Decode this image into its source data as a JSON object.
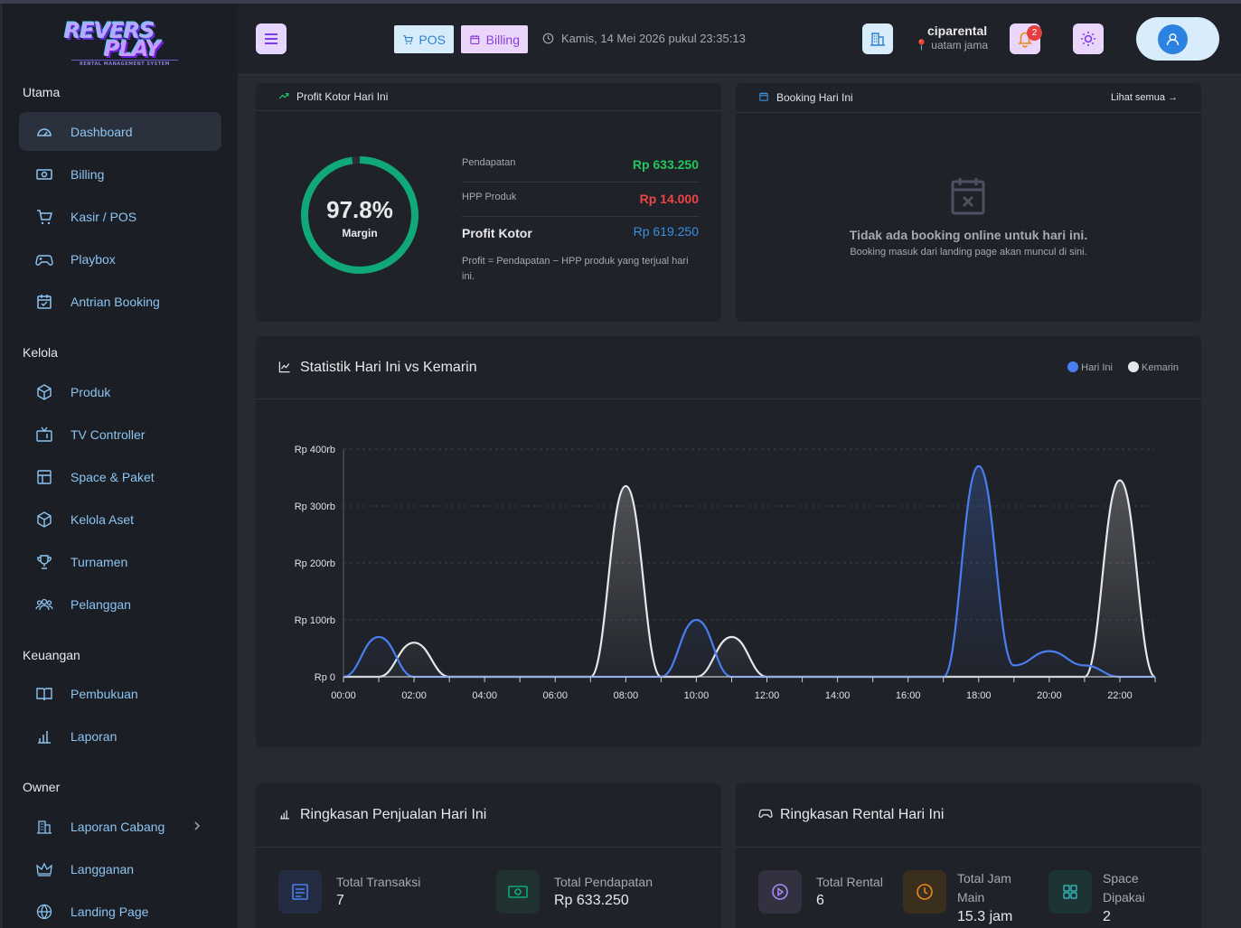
{
  "brand": {
    "line1": "REVERS",
    "line2": "PLAY",
    "tagline": "RENTAL MANAGEMENT SYSTEM"
  },
  "sidebar": {
    "sections": [
      {
        "title": "Utama",
        "items": [
          {
            "label": "Dashboard",
            "icon": "gauge-icon",
            "active": true
          },
          {
            "label": "Billing",
            "icon": "money-icon"
          },
          {
            "label": "Kasir / POS",
            "icon": "cart-icon"
          },
          {
            "label": "Playbox",
            "icon": "gamepad-icon"
          },
          {
            "label": "Antrian Booking",
            "icon": "calendar-check-icon"
          }
        ]
      },
      {
        "title": "Kelola",
        "items": [
          {
            "label": "Produk",
            "icon": "box-icon"
          },
          {
            "label": "TV Controller",
            "icon": "tv-icon"
          },
          {
            "label": "Space & Paket",
            "icon": "layout-icon"
          },
          {
            "label": "Kelola Aset",
            "icon": "box-icon"
          },
          {
            "label": "Turnamen",
            "icon": "trophy-icon"
          },
          {
            "label": "Pelanggan",
            "icon": "users-icon"
          }
        ]
      },
      {
        "title": "Keuangan",
        "items": [
          {
            "label": "Pembukuan",
            "icon": "book-icon"
          },
          {
            "label": "Laporan",
            "icon": "bar-chart-icon"
          }
        ]
      },
      {
        "title": "Owner",
        "items": [
          {
            "label": "Laporan Cabang",
            "icon": "buildings-icon",
            "chevron": true
          },
          {
            "label": "Langganan",
            "icon": "crown-icon"
          },
          {
            "label": "Landing Page",
            "icon": "globe-icon"
          }
        ]
      }
    ]
  },
  "header": {
    "pos_label": "POS",
    "billing_label": "Billing",
    "datetime": "Kamis, 14 Mei 2026 pukul 23:35:13",
    "user_name": "ciparental",
    "user_location": "uatam jama",
    "notification_count": "2"
  },
  "profit_card": {
    "title": "Profit Kotor Hari Ini",
    "margin_value": "97.8%",
    "margin_fraction": 0.978,
    "margin_label": "Margin",
    "rows": [
      {
        "label": "Pendapatan",
        "value": "Rp 633.250",
        "color": "#22c55e"
      },
      {
        "label": "HPP Produk",
        "value": "Rp 14.000",
        "color": "#ef4444"
      }
    ],
    "profit_label": "Profit Kotor",
    "profit_value": "Rp 619.250",
    "note": "Profit = Pendapatan − HPP produk yang terjual hari ini."
  },
  "booking_card": {
    "title": "Booking Hari Ini",
    "see_all": "Lihat semua →",
    "empty_title": "Tidak ada booking online untuk hari ini.",
    "empty_sub": "Booking masuk dari landing page akan muncul di sini."
  },
  "stats_card": {
    "title": "Statistik Hari Ini vs Kemarin",
    "legend": [
      {
        "name": "Hari Ini",
        "color": "#4a7ef0"
      },
      {
        "name": "Kemarin",
        "color": "#e5e7eb"
      }
    ]
  },
  "chart_data": {
    "type": "area",
    "x": [
      "00:00",
      "01:00",
      "02:00",
      "03:00",
      "04:00",
      "05:00",
      "06:00",
      "07:00",
      "08:00",
      "09:00",
      "10:00",
      "11:00",
      "12:00",
      "13:00",
      "14:00",
      "15:00",
      "16:00",
      "17:00",
      "18:00",
      "19:00",
      "20:00",
      "21:00",
      "22:00",
      "23:00"
    ],
    "x_ticks": [
      "00:00",
      "02:00",
      "04:00",
      "06:00",
      "08:00",
      "10:00",
      "12:00",
      "14:00",
      "16:00",
      "18:00",
      "20:00",
      "22:00"
    ],
    "y_ticks": [
      "Rp 0",
      "Rp 100rb",
      "Rp 200rb",
      "Rp 300rb",
      "Rp 400rb"
    ],
    "ylim": [
      0,
      400000
    ],
    "grid": true,
    "legend_position": "top-right",
    "series": [
      {
        "name": "Hari Ini",
        "values": [
          0,
          70000,
          0,
          0,
          0,
          0,
          0,
          0,
          0,
          0,
          100000,
          0,
          0,
          0,
          0,
          0,
          0,
          0,
          370000,
          20000,
          45000,
          20000,
          0,
          0
        ]
      },
      {
        "name": "Kemarin",
        "values": [
          0,
          0,
          60000,
          0,
          0,
          0,
          0,
          0,
          335000,
          0,
          0,
          70000,
          0,
          0,
          0,
          0,
          0,
          0,
          0,
          0,
          0,
          0,
          345000,
          0
        ]
      }
    ]
  },
  "sales_card": {
    "title": "Ringkasan Penjualan Hari Ini",
    "items": [
      {
        "label": "Total Transaksi",
        "value": "7",
        "icon": "receipt-icon"
      },
      {
        "label": "Total Pendapatan",
        "value": "Rp 633.250",
        "icon": "cash-icon"
      }
    ]
  },
  "rental_card": {
    "title": "Ringkasan Rental Hari Ini",
    "items": [
      {
        "label": "Total Rental",
        "value": "6",
        "icon": "play-icon"
      },
      {
        "label1": "Total Jam",
        "label2": "Main",
        "value": "15.3 jam",
        "icon": "clock-icon"
      },
      {
        "label1": "Space",
        "label2": "Dipakai",
        "value": "2",
        "icon": "grid-icon"
      }
    ]
  }
}
